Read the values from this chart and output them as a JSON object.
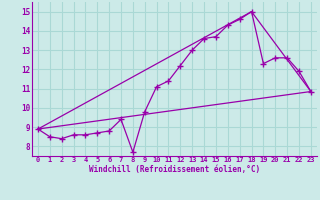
{
  "xlabel": "Windchill (Refroidissement éolien,°C)",
  "bg_color": "#cceae8",
  "grid_color": "#aad8d5",
  "line_color": "#9900aa",
  "xlim": [
    -0.5,
    23.5
  ],
  "ylim": [
    7.5,
    15.5
  ],
  "xticks": [
    0,
    1,
    2,
    3,
    4,
    5,
    6,
    7,
    8,
    9,
    10,
    11,
    12,
    13,
    14,
    15,
    16,
    17,
    18,
    19,
    20,
    21,
    22,
    23
  ],
  "yticks": [
    8,
    9,
    10,
    11,
    12,
    13,
    14,
    15
  ],
  "series1_x": [
    0,
    1,
    2,
    3,
    4,
    5,
    6,
    7,
    8,
    9,
    10,
    11,
    12,
    13,
    14,
    15,
    16,
    17,
    18,
    19,
    20,
    21,
    22,
    23
  ],
  "series1_y": [
    8.9,
    8.5,
    8.4,
    8.6,
    8.6,
    8.7,
    8.8,
    9.4,
    7.7,
    9.8,
    11.1,
    11.4,
    12.2,
    13.0,
    13.6,
    13.7,
    14.3,
    14.6,
    15.0,
    12.3,
    12.6,
    12.6,
    11.9,
    10.85
  ],
  "series2_x": [
    0,
    18,
    23
  ],
  "series2_y": [
    8.9,
    15.0,
    10.85
  ],
  "series3_x": [
    0,
    23
  ],
  "series3_y": [
    8.9,
    10.85
  ]
}
